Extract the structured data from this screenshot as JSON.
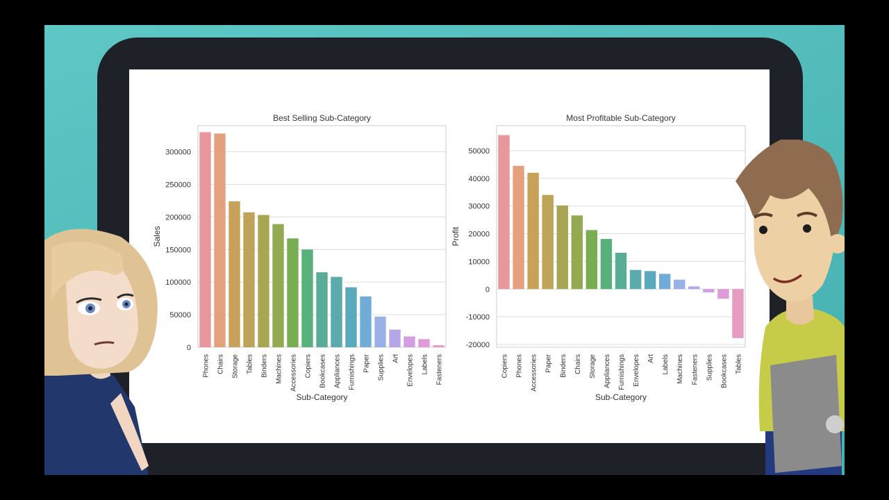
{
  "chart_data": [
    {
      "type": "bar",
      "title": "Best Selling Sub-Category",
      "xlabel": "Sub-Category",
      "ylabel": "Sales",
      "ylim": [
        0,
        340000
      ],
      "yticks": [
        0,
        50000,
        100000,
        150000,
        200000,
        250000,
        300000
      ],
      "grid": true,
      "categories": [
        "Phones",
        "Chairs",
        "Storage",
        "Tables",
        "Binders",
        "Machines",
        "Accessories",
        "Copiers",
        "Bookcases",
        "Appliances",
        "Furnishings",
        "Paper",
        "Supplies",
        "Art",
        "Envelopes",
        "Labels",
        "Fasteners"
      ],
      "values": [
        330000,
        328000,
        224000,
        207000,
        203000,
        189000,
        167000,
        150000,
        115000,
        108000,
        92000,
        78000,
        47000,
        27000,
        16500,
        12500,
        3000
      ],
      "colors": [
        "#e8979d",
        "#e5a080",
        "#c9a25a",
        "#bea358",
        "#a9a653",
        "#94aa52",
        "#78ad52",
        "#58b07a",
        "#59ad96",
        "#5aabab",
        "#5aa9bc",
        "#71acd8",
        "#9ab1e8",
        "#b6a6e8",
        "#d39fe2",
        "#df9bd5",
        "#e69bc2"
      ]
    },
    {
      "type": "bar",
      "title": "Most Profitable Sub-Category",
      "xlabel": "Sub-Category",
      "ylabel": "Profit",
      "ylim": [
        -21000,
        59000
      ],
      "yticks": [
        -20000,
        -10000,
        0,
        10000,
        20000,
        30000,
        40000,
        50000
      ],
      "grid": true,
      "categories": [
        "Copiers",
        "Phones",
        "Accessories",
        "Paper",
        "Binders",
        "Chairs",
        "Storage",
        "Appliances",
        "Furnishings",
        "Envelopes",
        "Art",
        "Labels",
        "Machines",
        "Fasteners",
        "Supplies",
        "Bookcases",
        "Tables"
      ],
      "values": [
        55600,
        44500,
        42000,
        34000,
        30200,
        26600,
        21300,
        18100,
        13100,
        6900,
        6500,
        5500,
        3400,
        950,
        -1200,
        -3500,
        -17700
      ],
      "colors": [
        "#e8979d",
        "#e5a080",
        "#c9a25a",
        "#bea358",
        "#a9a653",
        "#94aa52",
        "#78ad52",
        "#58b07a",
        "#59ad96",
        "#5aabab",
        "#5aa9bc",
        "#71acd8",
        "#9ab1e8",
        "#b6a6e8",
        "#d39fe2",
        "#df9bd5",
        "#e69bc2"
      ]
    }
  ]
}
